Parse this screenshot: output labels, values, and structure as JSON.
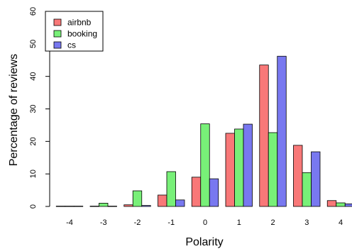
{
  "chart_data": {
    "type": "bar",
    "xlabel": "Polarity",
    "ylabel": "Percentage of reviews",
    "ylim": [
      0,
      60
    ],
    "yticks": [
      0,
      10,
      20,
      30,
      40,
      50,
      60
    ],
    "categories": [
      "-4",
      "-3",
      "-2",
      "-1",
      "0",
      "1",
      "2",
      "3",
      "4"
    ],
    "series": [
      {
        "name": "airbnb",
        "color": "#f87878",
        "values": [
          0.1,
          0.1,
          0.5,
          3.5,
          9.0,
          22.5,
          43.5,
          18.8,
          1.8
        ]
      },
      {
        "name": "booking",
        "color": "#78f078",
        "values": [
          0.1,
          1.0,
          4.8,
          10.7,
          25.4,
          23.8,
          22.7,
          10.4,
          1.1
        ]
      },
      {
        "name": "cs",
        "color": "#7878f0",
        "values": [
          0.1,
          0.1,
          0.3,
          2.0,
          8.5,
          25.3,
          46.2,
          16.8,
          0.8
        ]
      }
    ],
    "legend": "top-left",
    "grid": false
  }
}
